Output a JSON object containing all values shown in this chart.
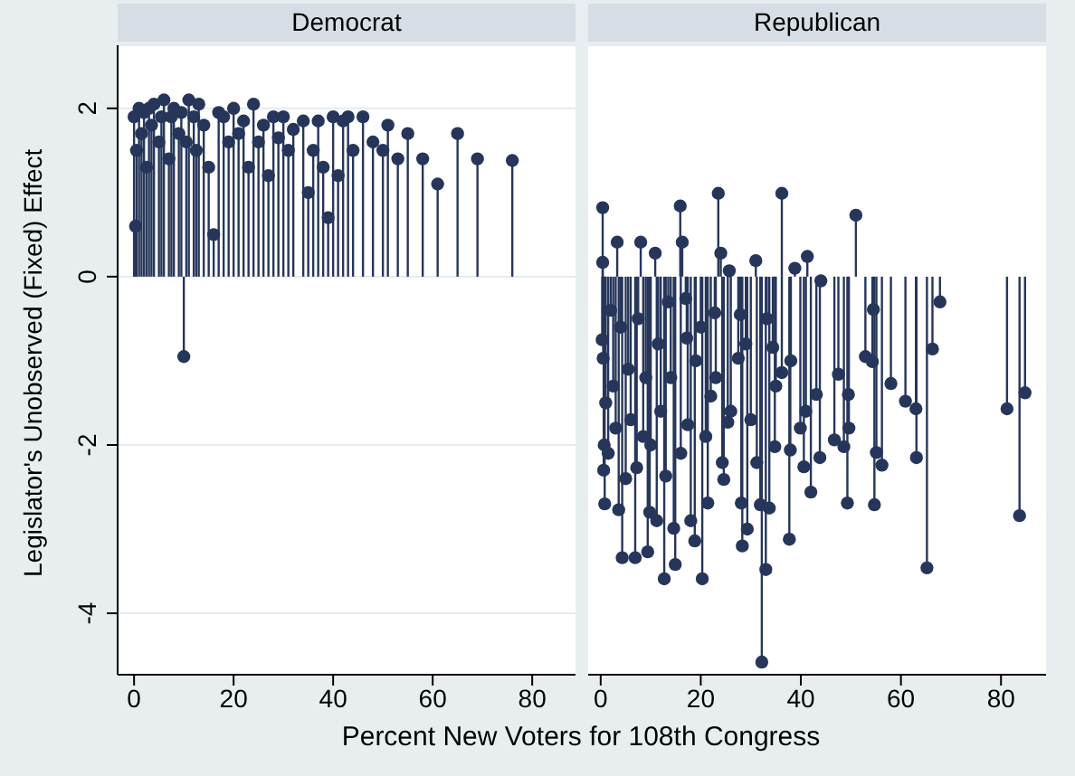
{
  "chart_data": [
    {
      "type": "lollipop",
      "title": "Democrat",
      "xlabel": "Percent New Voters for 108th Congress",
      "ylabel": "Legislator's Unobserved (Fixed) Effect",
      "color": "#26365a",
      "marker": "circle",
      "grid": "y",
      "xlim": [
        -3.3,
        88.7
      ],
      "ylim": [
        -4.73,
        2.75
      ],
      "xticks": [
        0,
        20,
        40,
        60,
        80
      ],
      "yticks": [
        -4,
        -2,
        0,
        2
      ],
      "x": [
        0,
        0.3,
        0.5,
        1,
        1.5,
        2,
        2.5,
        3,
        3.5,
        4,
        5,
        5.5,
        6,
        7,
        7.5,
        8,
        9,
        9.5,
        10,
        10.5,
        11,
        12,
        12.5,
        13,
        14,
        15,
        16,
        17,
        18,
        19,
        20,
        21,
        22,
        23,
        24,
        25,
        26,
        27,
        28,
        29,
        30,
        31,
        32,
        34,
        35,
        36,
        37,
        38,
        39,
        40,
        41,
        42,
        43,
        44,
        46,
        48,
        50,
        51,
        53,
        55,
        58,
        61,
        65,
        69,
        76
      ],
      "values": [
        1.9,
        0.6,
        1.5,
        2.0,
        1.7,
        1.95,
        1.3,
        2.0,
        1.8,
        2.05,
        1.6,
        1.9,
        2.1,
        1.4,
        1.9,
        2.0,
        1.7,
        1.95,
        -0.95,
        1.6,
        2.1,
        1.9,
        1.5,
        2.05,
        1.8,
        1.3,
        0.5,
        1.95,
        1.9,
        1.6,
        2.0,
        1.7,
        1.85,
        1.3,
        2.05,
        1.6,
        1.8,
        1.2,
        1.9,
        1.65,
        1.9,
        1.5,
        1.75,
        1.85,
        1.0,
        1.5,
        1.85,
        1.3,
        0.7,
        1.9,
        1.2,
        1.85,
        1.9,
        1.5,
        1.9,
        1.6,
        1.5,
        1.8,
        1.4,
        1.7,
        1.4,
        1.1,
        1.7,
        1.4,
        1.38
      ]
    },
    {
      "type": "lollipop",
      "title": "Republican",
      "color": "#26365a",
      "marker": "circle",
      "grid": "y",
      "tick_labels": "x",
      "xlim": [
        -2.5,
        89
      ],
      "ylim": [
        -4.73,
        2.75
      ],
      "xticks": [
        0,
        20,
        40,
        60,
        80
      ],
      "yticks": [
        -4,
        -2,
        0,
        2
      ],
      "x": [
        0.4,
        0.4,
        3.3,
        8,
        10.9,
        15.9,
        16.3,
        23.5,
        24,
        31,
        36.2,
        38.8,
        41.3,
        51,
        0.3,
        0.5,
        0.8,
        0.6,
        0.7,
        3.6,
        4.3,
        6.9,
        7.2,
        9.4,
        9.8,
        11.2,
        12.7,
        14.9,
        14.6,
        13,
        17,
        17.2,
        17.4,
        18,
        18.8,
        20.3,
        21.4,
        22,
        22.8,
        24.3,
        24.6,
        25.7,
        25.4,
        27.9,
        27.5,
        28.1,
        28.3,
        29.3,
        31.2,
        31.9,
        32.2,
        33,
        33.7,
        34.4,
        34.8,
        36.2,
        37.7,
        37.9,
        39.9,
        40.6,
        42,
        43.1,
        43.8,
        44,
        47.5,
        46.7,
        48.6,
        49.3,
        49.5,
        49.6,
        52.9,
        54.3,
        54.5,
        54.7,
        55.1,
        56.2,
        58,
        60.9,
        63,
        63.1,
        65.2,
        66.3,
        67.8,
        81.2,
        83.7,
        84.8,
        1,
        1.5,
        2,
        2.5,
        3,
        4,
        5,
        5.5,
        6,
        7.5,
        8.5,
        9,
        10,
        11.5,
        12,
        13.5,
        14,
        16,
        19,
        20,
        21,
        23,
        26,
        29,
        30,
        33.2,
        35,
        38,
        41
      ],
      "values": [
        0.82,
        0.17,
        0.41,
        0.41,
        0.28,
        0.84,
        0.41,
        0.99,
        0.28,
        0.19,
        0.99,
        0.1,
        0.24,
        0.73,
        -0.75,
        -0.97,
        -2.7,
        -2.3,
        -2.0,
        -2.77,
        -3.34,
        -3.34,
        -2.27,
        -3.27,
        -2.8,
        -2.9,
        -3.59,
        -3.42,
        -2.99,
        -2.37,
        -0.26,
        -0.73,
        -1.76,
        -2.9,
        -3.14,
        -3.59,
        -2.69,
        -1.42,
        -0.43,
        -2.21,
        -2.41,
        0.07,
        -1.73,
        -0.45,
        -0.97,
        -2.69,
        -3.2,
        -3.0,
        -2.21,
        -2.71,
        -4.58,
        -3.48,
        -2.75,
        -0.84,
        -2.02,
        -1.14,
        -3.12,
        -2.06,
        -1.8,
        -2.26,
        -2.56,
        -1.4,
        -2.15,
        -0.05,
        -1.16,
        -1.94,
        -2.02,
        -2.69,
        -1.4,
        -1.8,
        -0.95,
        -1.01,
        -0.39,
        -2.71,
        -2.09,
        -2.24,
        -1.27,
        -1.48,
        -1.57,
        -2.15,
        -3.46,
        -0.86,
        -0.3,
        -1.57,
        -2.84,
        -1.38,
        -1.5,
        -2.1,
        -0.4,
        -1.3,
        -1.8,
        -0.6,
        -2.4,
        -1.1,
        -1.7,
        -0.5,
        -1.9,
        -1.2,
        -2.0,
        -0.8,
        -1.6,
        -0.3,
        -1.2,
        -2.1,
        -1.0,
        -0.6,
        -1.9,
        -1.2,
        -1.6,
        -0.8,
        -1.7,
        -0.5,
        -1.3,
        -1.0,
        -1.6
      ]
    }
  ]
}
